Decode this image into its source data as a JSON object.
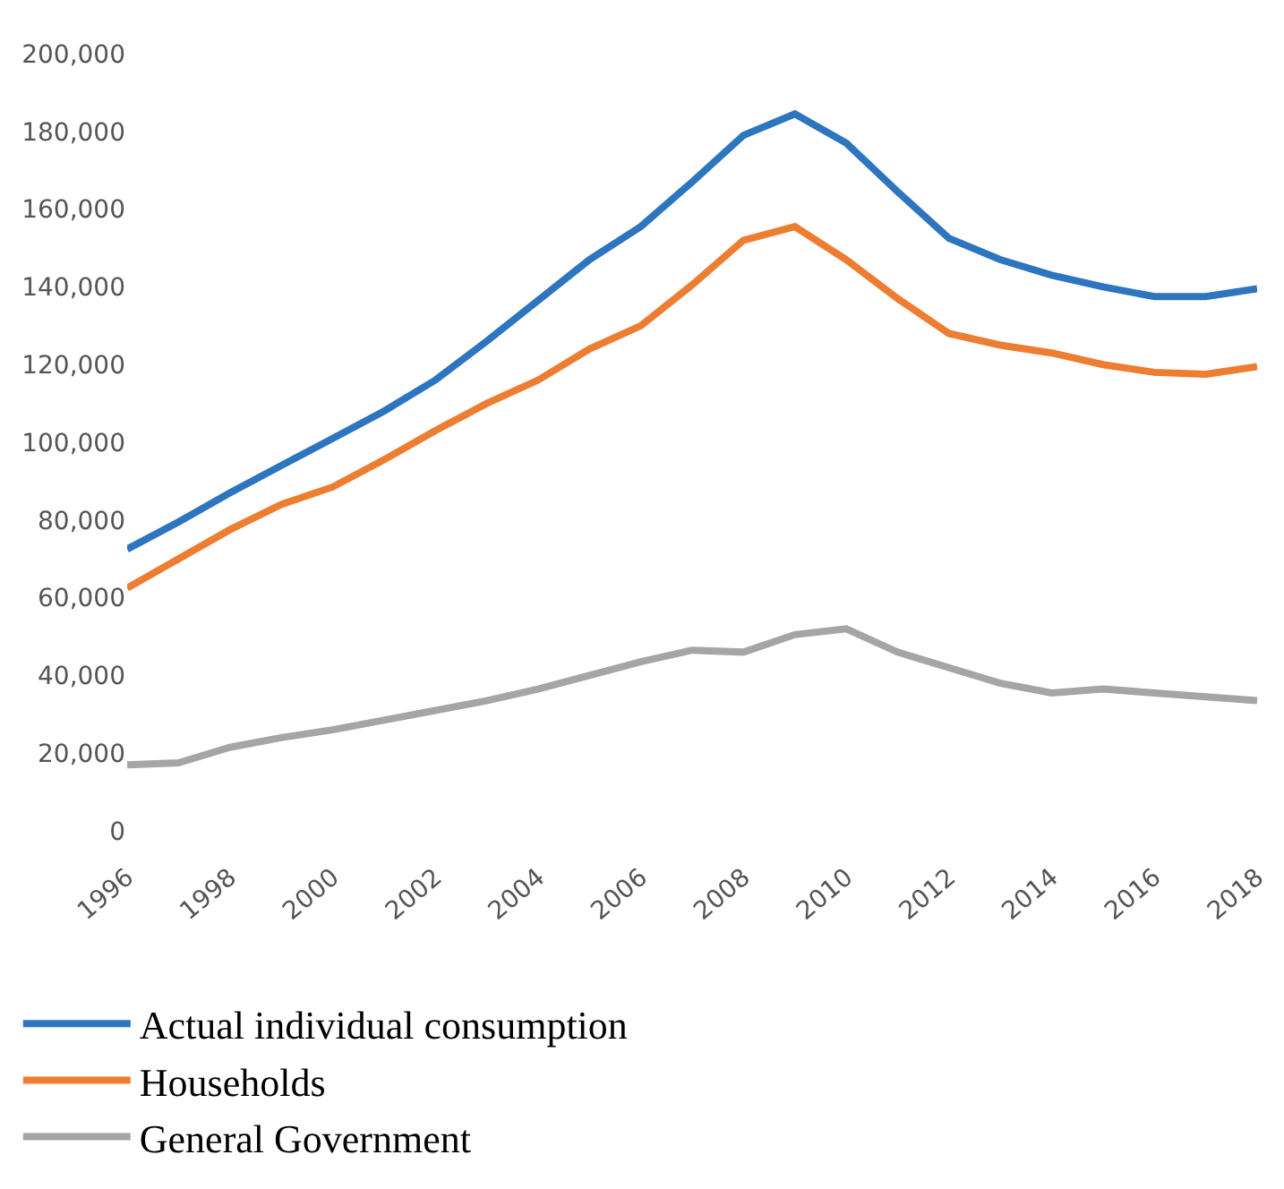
{
  "chart_data": {
    "type": "line",
    "x": [
      1996,
      1997,
      1998,
      1999,
      2000,
      2001,
      2002,
      2003,
      2004,
      2005,
      2006,
      2007,
      2008,
      2009,
      2010,
      2011,
      2012,
      2013,
      2014,
      2015,
      2016,
      2017,
      2018
    ],
    "series": [
      {
        "name": "Actual individual consumption",
        "color": "#2e75c0",
        "values": [
          72500,
          79500,
          87000,
          94000,
          101000,
          108000,
          116000,
          126000,
          136500,
          147000,
          155500,
          167000,
          179000,
          184500,
          177000,
          164500,
          152500,
          147000,
          143000,
          140000,
          137500,
          137500,
          139500
        ]
      },
      {
        "name": "Households",
        "color": "#ed7d31",
        "values": [
          62500,
          70000,
          77500,
          84000,
          88500,
          95500,
          103000,
          110000,
          116000,
          124000,
          130000,
          140500,
          152000,
          155500,
          147000,
          137000,
          128000,
          125000,
          123000,
          120000,
          118000,
          117500,
          119500
        ]
      },
      {
        "name": "General Government",
        "color": "#a5a5a5",
        "values": [
          17000,
          17500,
          21500,
          24000,
          26000,
          28500,
          31000,
          33500,
          36500,
          40000,
          43500,
          46500,
          46000,
          50500,
          52000,
          46000,
          42000,
          38000,
          35500,
          36500,
          35500,
          34500,
          33500
        ]
      }
    ],
    "xlim": [
      1996,
      2018
    ],
    "xticks": [
      1996,
      1998,
      2000,
      2002,
      2004,
      2006,
      2008,
      2010,
      2012,
      2014,
      2016,
      2018
    ],
    "ylim": [
      0,
      200000
    ],
    "yticks": [
      {
        "value": 0,
        "label": "0"
      },
      {
        "value": 20000,
        "label": "20,000"
      },
      {
        "value": 40000,
        "label": "40,000"
      },
      {
        "value": 60000,
        "label": "60,000"
      },
      {
        "value": 80000,
        "label": "80,000"
      },
      {
        "value": 100000,
        "label": "100,000"
      },
      {
        "value": 120000,
        "label": "120,000"
      },
      {
        "value": 140000,
        "label": "140,000"
      },
      {
        "value": 160000,
        "label": "160,000"
      },
      {
        "value": 180000,
        "label": "180,000"
      },
      {
        "value": 200000,
        "label": "200,000"
      }
    ],
    "legend": "bottom",
    "marker": "none",
    "line_style": "solid"
  }
}
